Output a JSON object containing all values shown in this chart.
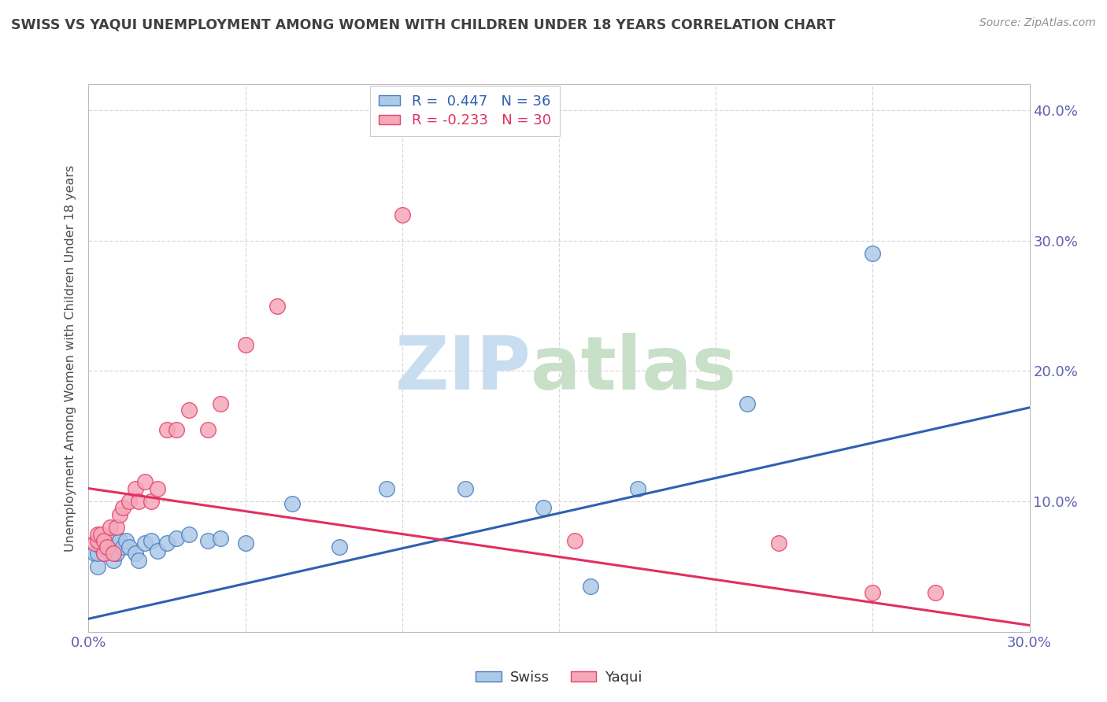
{
  "title": "SWISS VS YAQUI UNEMPLOYMENT AMONG WOMEN WITH CHILDREN UNDER 18 YEARS CORRELATION CHART",
  "source": "Source: ZipAtlas.com",
  "ylabel": "Unemployment Among Women with Children Under 18 years",
  "xlim": [
    0.0,
    0.3
  ],
  "ylim": [
    0.0,
    0.42
  ],
  "xticks": [
    0.0,
    0.05,
    0.1,
    0.15,
    0.2,
    0.25,
    0.3
  ],
  "xtick_labels": [
    "0.0%",
    "",
    "",
    "",
    "",
    "",
    "30.0%"
  ],
  "yticks": [
    0.0,
    0.1,
    0.2,
    0.3,
    0.4
  ],
  "ytick_labels_right": [
    "",
    "10.0%",
    "20.0%",
    "30.0%",
    "40.0%"
  ],
  "swiss_R": 0.447,
  "swiss_N": 36,
  "yaqui_R": -0.233,
  "yaqui_N": 30,
  "swiss_color": "#adc9e8",
  "yaqui_color": "#f4a8b8",
  "swiss_edge_color": "#4a7fc0",
  "yaqui_edge_color": "#e84070",
  "swiss_line_color": "#3060b0",
  "yaqui_line_color": "#e03060",
  "background_color": "#ffffff",
  "grid_color": "#d8d8d8",
  "title_color": "#404040",
  "source_color": "#909090",
  "ylabel_color": "#505050",
  "tick_color": "#6060b0",
  "swiss_line_start_y": 0.01,
  "swiss_line_end_y": 0.172,
  "yaqui_line_start_y": 0.11,
  "yaqui_line_end_y": 0.005,
  "swiss_scatter_x": [
    0.002,
    0.003,
    0.003,
    0.004,
    0.004,
    0.005,
    0.005,
    0.006,
    0.006,
    0.007,
    0.008,
    0.009,
    0.01,
    0.011,
    0.012,
    0.013,
    0.015,
    0.016,
    0.018,
    0.02,
    0.022,
    0.025,
    0.028,
    0.032,
    0.038,
    0.042,
    0.05,
    0.065,
    0.08,
    0.095,
    0.12,
    0.145,
    0.16,
    0.175,
    0.21,
    0.25
  ],
  "swiss_scatter_y": [
    0.06,
    0.05,
    0.06,
    0.065,
    0.07,
    0.06,
    0.065,
    0.065,
    0.07,
    0.07,
    0.055,
    0.06,
    0.07,
    0.065,
    0.07,
    0.065,
    0.06,
    0.055,
    0.068,
    0.07,
    0.062,
    0.068,
    0.072,
    0.075,
    0.07,
    0.072,
    0.068,
    0.098,
    0.065,
    0.11,
    0.11,
    0.095,
    0.035,
    0.11,
    0.175,
    0.29
  ],
  "yaqui_scatter_x": [
    0.002,
    0.003,
    0.003,
    0.004,
    0.005,
    0.005,
    0.006,
    0.007,
    0.008,
    0.009,
    0.01,
    0.011,
    0.013,
    0.015,
    0.016,
    0.018,
    0.02,
    0.022,
    0.025,
    0.028,
    0.032,
    0.038,
    0.042,
    0.05,
    0.06,
    0.1,
    0.155,
    0.22,
    0.25,
    0.27
  ],
  "yaqui_scatter_y": [
    0.068,
    0.07,
    0.075,
    0.075,
    0.06,
    0.07,
    0.065,
    0.08,
    0.06,
    0.08,
    0.09,
    0.095,
    0.1,
    0.11,
    0.1,
    0.115,
    0.1,
    0.11,
    0.155,
    0.155,
    0.17,
    0.155,
    0.175,
    0.22,
    0.25,
    0.32,
    0.07,
    0.068,
    0.03,
    0.03
  ]
}
